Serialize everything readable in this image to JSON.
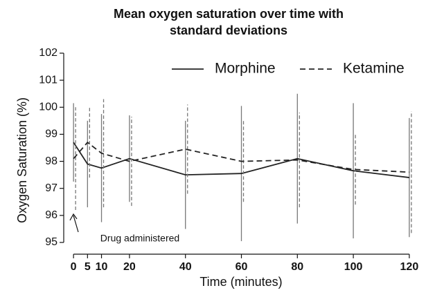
{
  "chart_data": {
    "type": "line",
    "title": "Mean oxygen saturation over time with standard deviations",
    "x_label": "Time (minutes)",
    "y_label": "Oxygen Saturation (%)",
    "annotation": "Drug administered",
    "x": [
      0,
      5,
      10,
      20,
      40,
      60,
      80,
      100,
      120
    ],
    "series": [
      {
        "name": "Morphine",
        "color": "#222222",
        "dash": "solid",
        "values": [
          98.7,
          97.9,
          97.75,
          98.1,
          97.5,
          97.55,
          98.1,
          97.65,
          97.4
        ],
        "errors": [
          1.45,
          1.6,
          2.0,
          1.6,
          2.0,
          2.5,
          2.4,
          2.5,
          2.2
        ]
      },
      {
        "name": "Ketamine",
        "color": "#222222",
        "dash": "dashed",
        "values": [
          98.1,
          98.7,
          98.3,
          98.0,
          98.45,
          98.0,
          98.05,
          97.7,
          97.6
        ],
        "errors": [
          1.9,
          1.3,
          2.0,
          1.65,
          1.65,
          1.5,
          1.75,
          1.3,
          2.25
        ]
      }
    ],
    "xlim": [
      -3.5,
      123
    ],
    "ylim": [
      94.5,
      102.5
    ],
    "xticks": [
      0,
      5,
      10,
      20,
      40,
      60,
      80,
      100,
      120
    ],
    "yticks": [
      95,
      96,
      97,
      98,
      99,
      100,
      101,
      102
    ],
    "legend": "top-right"
  }
}
